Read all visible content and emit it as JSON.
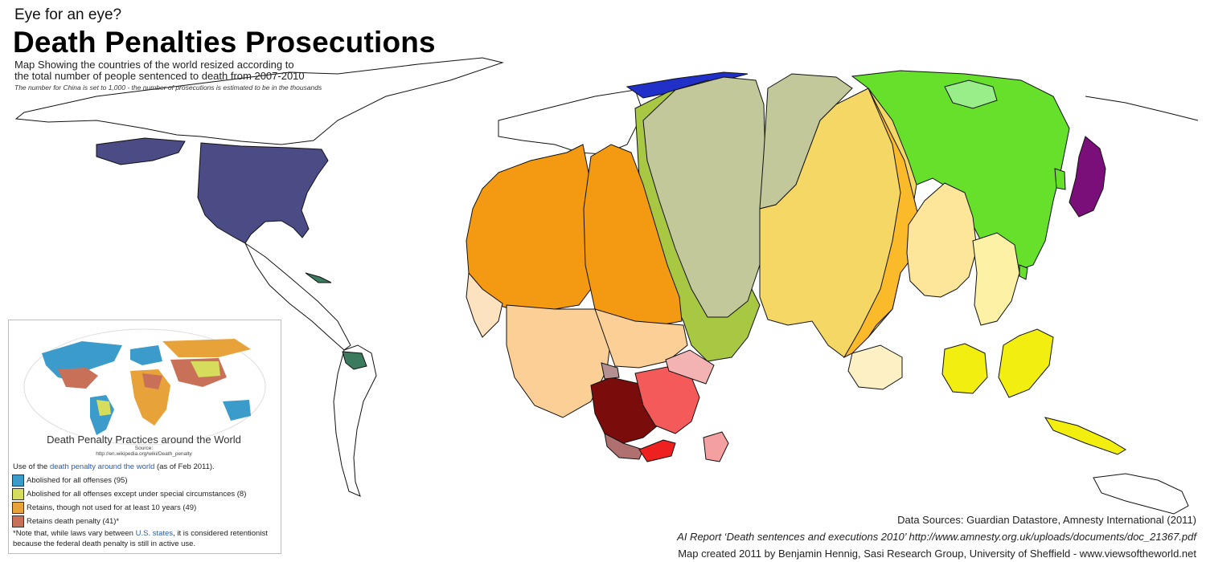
{
  "header": {
    "kicker": "Eye for an eye?",
    "title": "Death Penalties Prosecutions",
    "subtitle_line1": "Map Showing the countries of the world resized according to",
    "subtitle_line2": "the total number of people sentenced to death from 2007-2010",
    "note": "The number for China is set to 1,000 - the number of prosecutions is estimated to be in the thousands"
  },
  "inset": {
    "caption": "Death Penalty Practices around the World",
    "source_label": "Source:",
    "source_url": "http://en.wikipedia.org/wiki/Death_penalty",
    "intro_prefix": "Use of the ",
    "intro_link": "death penalty around the world",
    "intro_suffix": " (as of Feb 2011).",
    "legend": [
      {
        "label": "Abolished for all offenses (95)",
        "color": "#3b9ccc"
      },
      {
        "label": "Abolished for all offenses except under special circumstances (8)",
        "color": "#d6dc5c"
      },
      {
        "label": "Retains, though not used for at least 10 years (49)",
        "color": "#e8a23a"
      },
      {
        "label": "Retains death penalty (41)*",
        "color": "#c87058"
      }
    ],
    "footnote_prefix": "*Note that, while laws vary between ",
    "footnote_link": "U.S. states",
    "footnote_suffix": ", it is considered retentionist",
    "footnote_line2": "because the federal death penalty is still in active use."
  },
  "credits": {
    "line1": "Data Sources: Guardian Datastore, Amnesty International (2011)",
    "line2": "AI Report ‘Death sentences and executions 2010’ http://www.amnesty.org.uk/uploads/documents/doc_21367.pdf",
    "line3": "Map created 2011 by Benjamin Hennig, Sasi Research Group, University of Sheffield - www.viewsoftheworld.net"
  },
  "colors": {
    "usa": "#4b4b86",
    "pakistan": "#f39a12",
    "afghanistan": "#a8c843",
    "china_grey": "#c2c89a",
    "china_yellow": "#f5d766",
    "east_china": "#fbba2a",
    "russia_green": "#66e02a",
    "japan": "#7a0f7a",
    "southeast_asia": "#f2ef10",
    "iran_dark": "#7a0c0c",
    "egypt_red": "#f55a5a"
  }
}
